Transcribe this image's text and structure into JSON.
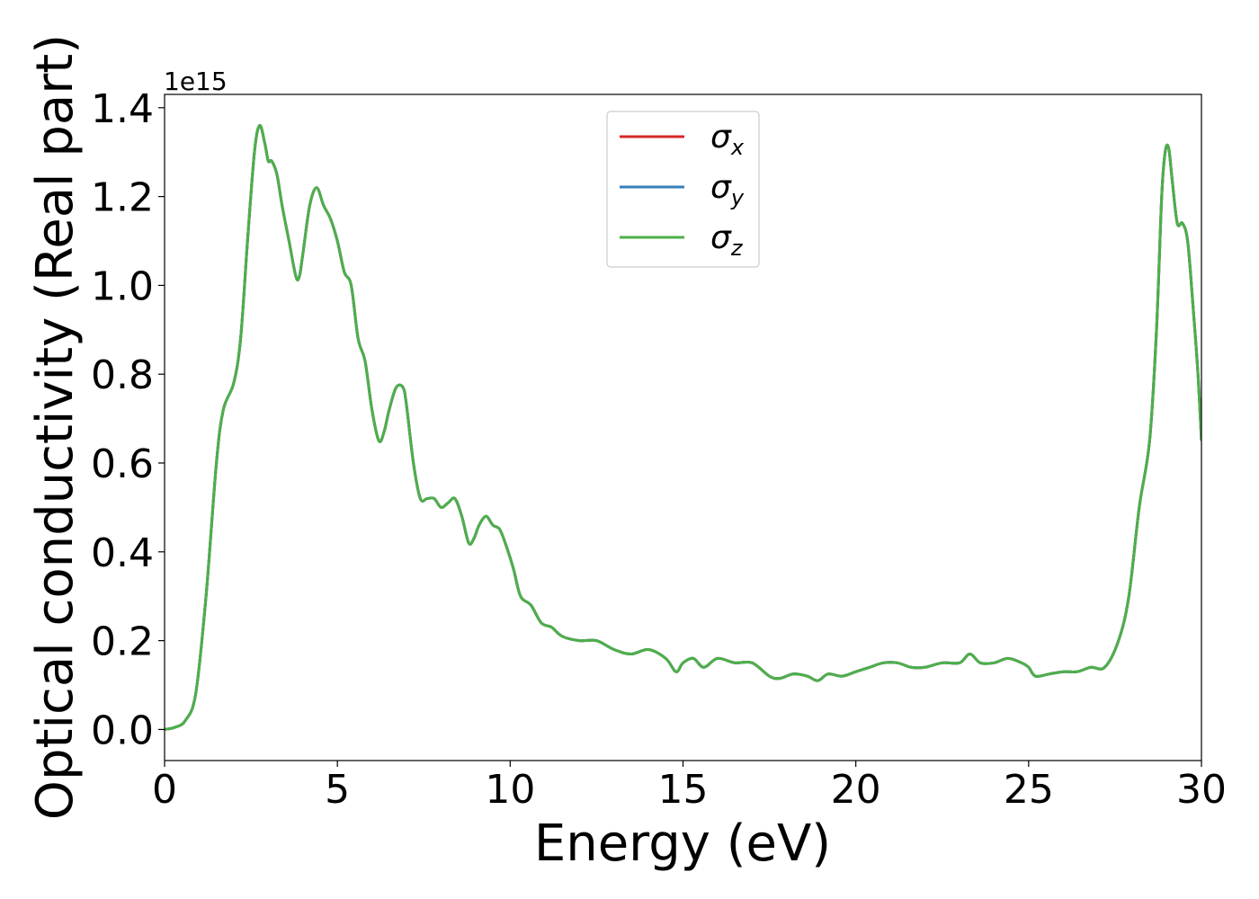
{
  "chart_data": {
    "type": "line",
    "xlabel": "Energy (eV)",
    "ylabel": "Optical conductivity (Real part)",
    "y_offset_label": "1e15",
    "xlim": [
      0,
      30
    ],
    "ylim": [
      -0.07,
      1.43
    ],
    "x_ticks": [
      0,
      5,
      10,
      15,
      20,
      25,
      30
    ],
    "x_tick_labels": [
      "0",
      "5",
      "10",
      "15",
      "20",
      "25",
      "30"
    ],
    "y_ticks": [
      0.0,
      0.2,
      0.4,
      0.6,
      0.8,
      1.0,
      1.2,
      1.4
    ],
    "y_tick_labels": [
      "0.0",
      "0.2",
      "0.4",
      "0.6",
      "0.8",
      "1.0",
      "1.2",
      "1.4"
    ],
    "grid": false,
    "legend_position": "top-center",
    "x": [
      0,
      0.3,
      0.6,
      0.9,
      1.2,
      1.5,
      1.7,
      2.0,
      2.2,
      2.4,
      2.6,
      2.75,
      2.9,
      3.0,
      3.1,
      3.25,
      3.4,
      3.6,
      3.8,
      3.9,
      4.0,
      4.2,
      4.4,
      4.6,
      4.8,
      5.0,
      5.2,
      5.4,
      5.6,
      5.8,
      6.0,
      6.2,
      6.35,
      6.5,
      6.7,
      6.9,
      7.0,
      7.2,
      7.4,
      7.6,
      7.8,
      8.0,
      8.2,
      8.4,
      8.6,
      8.8,
      8.95,
      9.1,
      9.3,
      9.5,
      9.7,
      9.9,
      10.1,
      10.3,
      10.6,
      10.9,
      11.2,
      11.5,
      12.0,
      12.5,
      13.0,
      13.5,
      14.0,
      14.5,
      14.8,
      15.0,
      15.3,
      15.6,
      16.0,
      16.5,
      17.0,
      17.5,
      17.8,
      18.2,
      18.6,
      18.9,
      19.2,
      19.6,
      20.0,
      20.4,
      20.8,
      21.2,
      21.6,
      22.0,
      22.5,
      23.0,
      23.3,
      23.6,
      24.0,
      24.4,
      24.8,
      25.0,
      25.2,
      25.6,
      26.0,
      26.4,
      26.8,
      27.2,
      27.6,
      27.9,
      28.2,
      28.5,
      28.7,
      28.85,
      28.95,
      29.05,
      29.15,
      29.3,
      29.45,
      29.6,
      29.75,
      29.9,
      30.0
    ],
    "series": [
      {
        "name": "σx",
        "color": "#d62728",
        "values": [
          0.0,
          0.005,
          0.02,
          0.08,
          0.3,
          0.6,
          0.72,
          0.78,
          0.88,
          1.1,
          1.3,
          1.36,
          1.32,
          1.28,
          1.28,
          1.25,
          1.18,
          1.1,
          1.02,
          1.02,
          1.07,
          1.18,
          1.22,
          1.18,
          1.15,
          1.1,
          1.03,
          1.0,
          0.88,
          0.83,
          0.72,
          0.65,
          0.67,
          0.72,
          0.77,
          0.77,
          0.73,
          0.6,
          0.52,
          0.52,
          0.52,
          0.5,
          0.51,
          0.52,
          0.48,
          0.42,
          0.43,
          0.46,
          0.48,
          0.46,
          0.45,
          0.41,
          0.36,
          0.3,
          0.28,
          0.24,
          0.23,
          0.21,
          0.2,
          0.2,
          0.18,
          0.17,
          0.18,
          0.16,
          0.13,
          0.15,
          0.16,
          0.14,
          0.16,
          0.15,
          0.15,
          0.12,
          0.115,
          0.125,
          0.12,
          0.11,
          0.125,
          0.12,
          0.13,
          0.14,
          0.15,
          0.15,
          0.14,
          0.14,
          0.15,
          0.15,
          0.17,
          0.15,
          0.15,
          0.16,
          0.15,
          0.14,
          0.12,
          0.125,
          0.13,
          0.13,
          0.14,
          0.14,
          0.2,
          0.3,
          0.5,
          0.65,
          0.9,
          1.2,
          1.3,
          1.31,
          1.24,
          1.14,
          1.14,
          1.1,
          0.96,
          0.8,
          0.65
        ]
      },
      {
        "name": "σy",
        "color": "#377eb8",
        "values": [
          0.0,
          0.005,
          0.02,
          0.08,
          0.3,
          0.6,
          0.72,
          0.78,
          0.88,
          1.1,
          1.3,
          1.36,
          1.32,
          1.28,
          1.28,
          1.25,
          1.18,
          1.1,
          1.02,
          1.02,
          1.07,
          1.18,
          1.22,
          1.18,
          1.15,
          1.1,
          1.03,
          1.0,
          0.88,
          0.83,
          0.72,
          0.65,
          0.67,
          0.72,
          0.77,
          0.77,
          0.73,
          0.6,
          0.52,
          0.52,
          0.52,
          0.5,
          0.51,
          0.52,
          0.48,
          0.42,
          0.43,
          0.46,
          0.48,
          0.46,
          0.45,
          0.41,
          0.36,
          0.3,
          0.28,
          0.24,
          0.23,
          0.21,
          0.2,
          0.2,
          0.18,
          0.17,
          0.18,
          0.16,
          0.13,
          0.15,
          0.16,
          0.14,
          0.16,
          0.15,
          0.15,
          0.12,
          0.115,
          0.125,
          0.12,
          0.11,
          0.125,
          0.12,
          0.13,
          0.14,
          0.15,
          0.15,
          0.14,
          0.14,
          0.15,
          0.15,
          0.17,
          0.15,
          0.15,
          0.16,
          0.15,
          0.14,
          0.12,
          0.125,
          0.13,
          0.13,
          0.14,
          0.14,
          0.2,
          0.3,
          0.5,
          0.65,
          0.9,
          1.2,
          1.3,
          1.31,
          1.24,
          1.14,
          1.14,
          1.1,
          0.96,
          0.8,
          0.65
        ]
      },
      {
        "name": "σz",
        "color": "#4daf4a",
        "values": [
          0.0,
          0.005,
          0.02,
          0.08,
          0.3,
          0.6,
          0.72,
          0.78,
          0.88,
          1.1,
          1.3,
          1.36,
          1.32,
          1.28,
          1.28,
          1.25,
          1.18,
          1.1,
          1.02,
          1.02,
          1.07,
          1.18,
          1.22,
          1.18,
          1.15,
          1.1,
          1.03,
          1.0,
          0.88,
          0.83,
          0.72,
          0.65,
          0.67,
          0.72,
          0.77,
          0.77,
          0.73,
          0.6,
          0.52,
          0.52,
          0.52,
          0.5,
          0.51,
          0.52,
          0.48,
          0.42,
          0.43,
          0.46,
          0.48,
          0.46,
          0.45,
          0.41,
          0.36,
          0.3,
          0.28,
          0.24,
          0.23,
          0.21,
          0.2,
          0.2,
          0.18,
          0.17,
          0.18,
          0.16,
          0.13,
          0.15,
          0.16,
          0.14,
          0.16,
          0.15,
          0.15,
          0.12,
          0.115,
          0.125,
          0.12,
          0.11,
          0.125,
          0.12,
          0.13,
          0.14,
          0.15,
          0.15,
          0.14,
          0.14,
          0.15,
          0.15,
          0.17,
          0.15,
          0.15,
          0.16,
          0.15,
          0.14,
          0.12,
          0.125,
          0.13,
          0.13,
          0.14,
          0.14,
          0.2,
          0.3,
          0.5,
          0.65,
          0.9,
          1.2,
          1.3,
          1.31,
          1.24,
          1.14,
          1.14,
          1.1,
          0.96,
          0.8,
          0.65
        ]
      }
    ],
    "legend": [
      {
        "symbol": "σ",
        "sub": "x",
        "color": "#d62728"
      },
      {
        "symbol": "σ",
        "sub": "y",
        "color": "#377eb8"
      },
      {
        "symbol": "σ",
        "sub": "z",
        "color": "#4daf4a"
      }
    ]
  }
}
